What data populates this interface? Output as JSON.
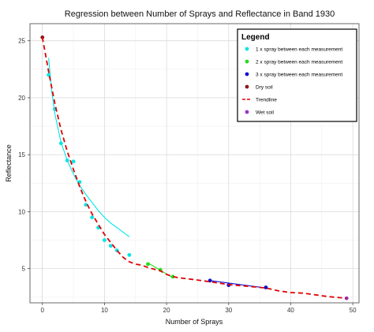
{
  "chart_data": {
    "type": "scatter",
    "title": "Regression between Number of Sprays and Reflectance in Band 1930",
    "xlabel": "Number of Sprays",
    "ylabel": "Reflectance",
    "xlim": [
      -2,
      51
    ],
    "ylim": [
      2,
      26.5
    ],
    "x_ticks": [
      0,
      10,
      20,
      30,
      40,
      50
    ],
    "y_ticks": [
      5,
      10,
      15,
      20,
      25
    ],
    "grid": true,
    "legend": {
      "title": "Legend",
      "placement": "top-right",
      "entries": [
        {
          "label": "1 x spray between each measurement",
          "color": "#00e5e5",
          "marker": "dot"
        },
        {
          "label": "2 x spray between each measurement",
          "color": "#22dd22",
          "marker": "dot"
        },
        {
          "label": "3 x spray between each measurement",
          "color": "#1010cc",
          "marker": "dot"
        },
        {
          "label": "Dry soil",
          "color": "#8b1a1a",
          "marker": "dot"
        },
        {
          "label": "Trendline",
          "color": "#e00000",
          "marker": "dash"
        },
        {
          "label": "Wet soil",
          "color": "#9933cc",
          "marker": "dot"
        }
      ]
    },
    "series": [
      {
        "name": "1 x spray between each measurement",
        "color": "#00e5e5",
        "x": [
          1,
          2,
          3,
          4,
          5,
          6,
          7,
          8,
          9,
          10,
          11,
          12,
          14
        ],
        "y": [
          22.0,
          19.0,
          16.0,
          14.5,
          14.4,
          12.6,
          10.6,
          9.5,
          8.6,
          7.5,
          7.0,
          6.6,
          6.2
        ]
      },
      {
        "name": "2 x spray between each measurement",
        "color": "#22dd22",
        "x": [
          17,
          19,
          21
        ],
        "y": [
          5.4,
          4.9,
          4.3
        ]
      },
      {
        "name": "3 x spray between each measurement",
        "color": "#1010cc",
        "x": [
          27,
          30,
          36
        ],
        "y": [
          3.95,
          3.55,
          3.35
        ]
      },
      {
        "name": "Dry soil",
        "color": "#8b1a1a",
        "x": [
          0
        ],
        "y": [
          25.3
        ]
      },
      {
        "name": "Wet soil",
        "color": "#9933cc",
        "x": [
          49
        ],
        "y": [
          2.4
        ]
      }
    ],
    "fit_lines": [
      {
        "color": "#00e5e5",
        "x": [
          1,
          1.5,
          2,
          3,
          4,
          5,
          6,
          7,
          8,
          9,
          10,
          11,
          12,
          13,
          14
        ],
        "y": [
          23.5,
          20.6,
          18.6,
          16.1,
          14.5,
          13.3,
          12.3,
          11.5,
          10.8,
          10.1,
          9.5,
          9.0,
          8.6,
          8.2,
          7.8
        ]
      },
      {
        "color": "#22dd22",
        "x": [
          17,
          21
        ],
        "y": [
          5.5,
          4.2
        ]
      },
      {
        "color": "#1010cc",
        "x": [
          27,
          36
        ],
        "y": [
          3.95,
          3.3
        ]
      }
    ],
    "trendline": {
      "name": "Trendline",
      "color": "#e00000",
      "x": [
        0,
        1,
        2,
        3,
        4,
        5,
        6,
        7,
        8,
        9,
        10,
        11,
        12,
        13,
        14,
        15,
        16,
        17,
        18,
        19,
        20,
        21,
        22,
        25,
        27,
        30,
        33,
        36,
        38,
        40,
        42,
        44,
        46,
        48,
        49
      ],
      "y": [
        25.3,
        22.3,
        19.5,
        17.2,
        15.3,
        13.7,
        12.2,
        10.9,
        9.8,
        8.9,
        8.0,
        7.3,
        6.6,
        6.0,
        5.6,
        5.4,
        5.3,
        5.1,
        4.95,
        4.8,
        4.5,
        4.3,
        4.2,
        4.0,
        3.85,
        3.6,
        3.45,
        3.3,
        3.05,
        2.9,
        2.85,
        2.7,
        2.55,
        2.45,
        2.4
      ]
    }
  }
}
